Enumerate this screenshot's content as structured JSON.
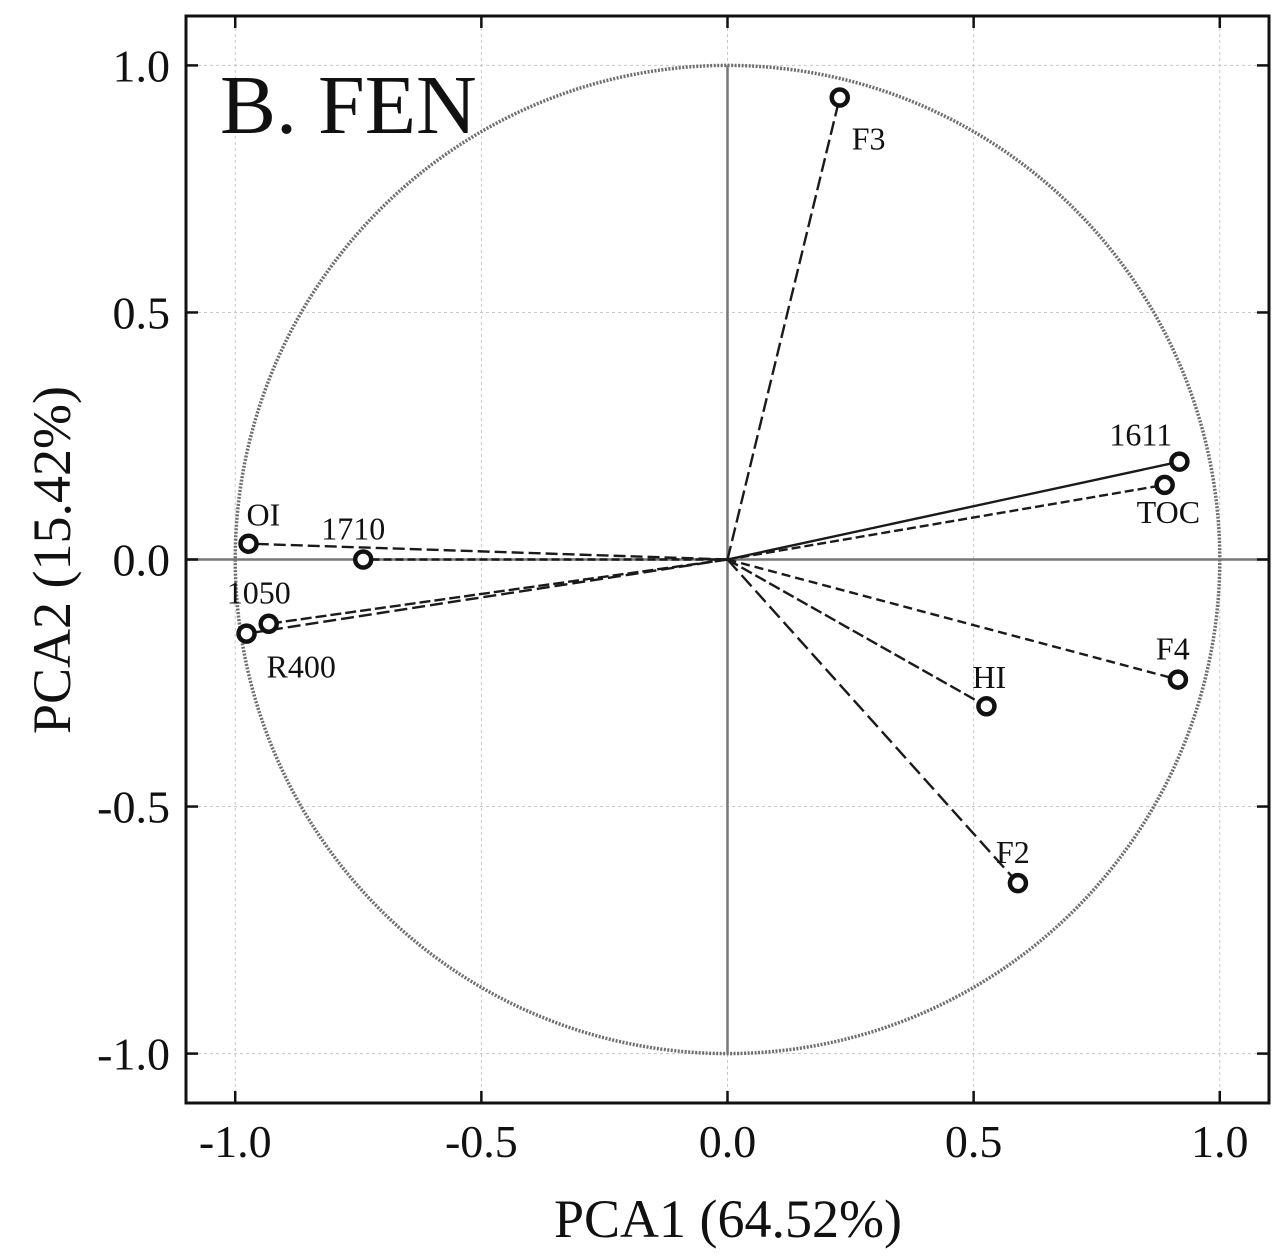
{
  "chart_data": {
    "type": "scatter",
    "title": "B. FEN",
    "xlabel": "PCA1 (64.52%)",
    "ylabel": "PCA2  (15.42%)",
    "xlim": [
      -1.1,
      1.1
    ],
    "ylim": [
      -1.1,
      1.1
    ],
    "xticks": [
      -1.0,
      -0.5,
      0.0,
      0.5,
      1.0
    ],
    "xtick_labels": [
      "-1.0",
      "-0.5",
      "0.0",
      "0.5",
      "1.0"
    ],
    "yticks": [
      -1.0,
      -0.5,
      0.0,
      0.5,
      1.0
    ],
    "ytick_labels": [
      "-1.0",
      "-0.5",
      "0.0",
      "0.5",
      "1.0"
    ],
    "grid": true,
    "unit_circle": true,
    "points": [
      {
        "label": "F3",
        "x": 0.228,
        "y": 0.935
      },
      {
        "label": "1611",
        "x": 0.918,
        "y": 0.198
      },
      {
        "label": "TOC",
        "x": 0.888,
        "y": 0.151
      },
      {
        "label": "OI",
        "x": -0.973,
        "y": 0.032
      },
      {
        "label": "1710",
        "x": -0.74,
        "y": 0.0
      },
      {
        "label": "1050",
        "x": -0.932,
        "y": -0.13
      },
      {
        "label": "R400",
        "x": -0.977,
        "y": -0.15
      },
      {
        "label": "F4",
        "x": 0.915,
        "y": -0.243
      },
      {
        "label": "HI",
        "x": 0.526,
        "y": -0.297
      },
      {
        "label": "F2",
        "x": 0.59,
        "y": -0.655
      }
    ]
  }
}
